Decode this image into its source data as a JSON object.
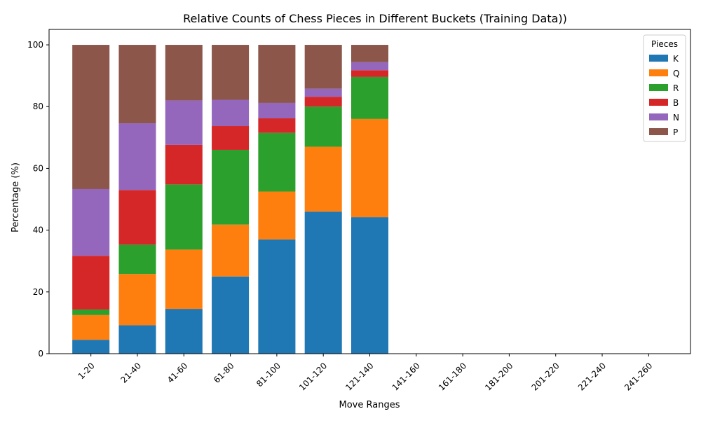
{
  "chart_data": {
    "type": "bar",
    "stacked": true,
    "title": "Relative Counts of Chess Pieces in Different Buckets (Training Data))",
    "xlabel": "Move Ranges",
    "ylabel": "Percentage (%)",
    "ylim": [
      0,
      105
    ],
    "yticks": [
      0,
      20,
      40,
      60,
      80,
      100
    ],
    "grid": false,
    "legend": {
      "title": "Pieces",
      "placement": "top-right"
    },
    "categories": [
      "1-20",
      "21-40",
      "41-60",
      "61-80",
      "81-100",
      "101-120",
      "121-140",
      "141-160",
      "161-180",
      "181-200",
      "201-220",
      "221-240",
      "241-260"
    ],
    "series": [
      {
        "name": "K",
        "color": "#1f77b4",
        "values": [
          4.5,
          9.2,
          14.5,
          25.0,
          37.0,
          46.0,
          44.2,
          0,
          0,
          0,
          0,
          0,
          0
        ]
      },
      {
        "name": "Q",
        "color": "#ff7f0e",
        "values": [
          8.0,
          16.6,
          19.2,
          16.8,
          15.5,
          21.0,
          31.8,
          0,
          0,
          0,
          0,
          0,
          0
        ]
      },
      {
        "name": "R",
        "color": "#2ca02c",
        "values": [
          1.8,
          9.5,
          21.1,
          24.2,
          19.0,
          13.0,
          13.6,
          0,
          0,
          0,
          0,
          0,
          0
        ]
      },
      {
        "name": "B",
        "color": "#d62728",
        "values": [
          17.4,
          17.7,
          12.8,
          7.7,
          4.7,
          3.2,
          2.2,
          0,
          0,
          0,
          0,
          0,
          0
        ]
      },
      {
        "name": "N",
        "color": "#9467bd",
        "values": [
          21.6,
          21.6,
          14.4,
          8.5,
          5.0,
          2.6,
          2.6,
          0,
          0,
          0,
          0,
          0,
          0
        ]
      },
      {
        "name": "P",
        "color": "#8c564b",
        "values": [
          46.7,
          25.4,
          18.0,
          17.8,
          18.8,
          14.2,
          5.6,
          0,
          0,
          0,
          0,
          0,
          0
        ]
      }
    ]
  }
}
